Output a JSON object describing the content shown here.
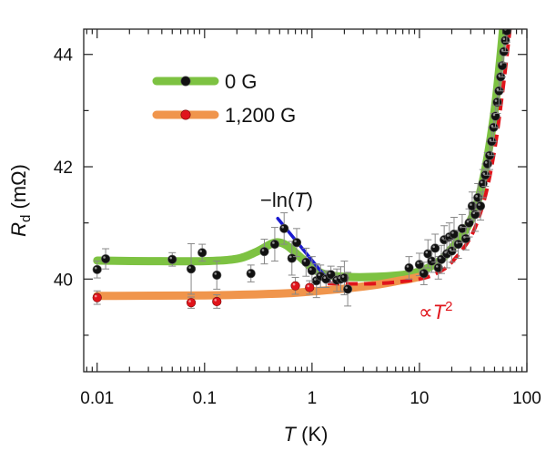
{
  "chart_data": {
    "type": "scatter",
    "xscale": "log",
    "xlim": [
      0.0075,
      100
    ],
    "ylim": [
      38.35,
      44.45
    ],
    "xlabel": "T (K)",
    "xlabel_italic": "T",
    "xlabel_rest": " (K)",
    "ylabel": "R_d (mΩ)",
    "ylabel_R": "R",
    "ylabel_sub": "d",
    "ylabel_rest": " (mΩ)",
    "xticks": [
      0.01,
      0.1,
      1,
      10,
      100
    ],
    "xtick_labels": [
      "0.01",
      "0.1",
      "1",
      "10",
      "100"
    ],
    "yticks": [
      40,
      42,
      44
    ],
    "ytick_labels": [
      "40",
      "42",
      "44"
    ],
    "legend_position": "top-left",
    "series": [
      {
        "name": "0 G",
        "marker_color": "#111111",
        "line_color": "#7dc242",
        "points": [
          [
            0.01,
            40.17,
            0.15
          ],
          [
            0.012,
            40.36,
            0.18
          ],
          [
            0.05,
            40.35,
            0.12
          ],
          [
            0.075,
            40.18,
            0.45
          ],
          [
            0.095,
            40.47,
            0.15
          ],
          [
            0.13,
            40.07,
            0.25
          ],
          [
            0.27,
            40.1,
            0.15
          ],
          [
            0.36,
            40.49,
            0.22
          ],
          [
            0.45,
            40.62,
            0.3
          ],
          [
            0.55,
            40.9,
            0.28
          ],
          [
            0.65,
            40.37,
            0.3
          ],
          [
            0.72,
            40.65,
            0.25
          ],
          [
            0.88,
            40.3,
            0.25
          ],
          [
            1.0,
            40.15,
            0.25
          ],
          [
            1.1,
            39.97,
            0.3
          ],
          [
            1.2,
            40.05,
            0.2
          ],
          [
            1.35,
            40.0,
            0.15
          ],
          [
            1.5,
            40.08,
            0.15
          ],
          [
            1.7,
            39.98,
            0.2
          ],
          [
            1.85,
            40.0,
            0.22
          ],
          [
            2.0,
            40.02,
            0.3
          ],
          [
            2.15,
            39.82,
            0.3
          ],
          [
            8.0,
            40.2,
            0.2
          ],
          [
            10.0,
            40.26,
            0.2
          ],
          [
            11.0,
            40.1,
            0.2
          ],
          [
            12.0,
            40.45,
            0.25
          ],
          [
            13.0,
            40.32,
            0.2
          ],
          [
            14.0,
            40.55,
            0.25
          ],
          [
            15.0,
            40.2,
            0.2
          ],
          [
            16.0,
            40.35,
            0.25
          ],
          [
            17.0,
            40.7,
            0.25
          ],
          [
            18.0,
            40.45,
            0.25
          ],
          [
            19.0,
            40.75,
            0.25
          ],
          [
            20.0,
            40.5,
            0.2
          ],
          [
            21.0,
            40.8,
            0.3
          ],
          [
            23.0,
            40.62,
            0.25
          ],
          [
            25.0,
            40.9,
            0.25
          ],
          [
            27.0,
            40.72,
            0.2
          ],
          [
            29.0,
            41.0,
            0.25
          ],
          [
            31.0,
            41.3,
            0.25
          ],
          [
            33.0,
            41.15,
            0.3
          ],
          [
            35.0,
            41.45,
            0.25
          ],
          [
            37.0,
            41.3,
            0.25
          ],
          [
            39.0,
            41.7,
            0.25
          ],
          [
            41.0,
            41.85,
            0.2
          ],
          [
            43.0,
            42.05,
            0.2
          ],
          [
            45.0,
            42.2,
            0.25
          ],
          [
            47.0,
            42.45,
            0.25
          ],
          [
            49.0,
            42.7,
            0.25
          ],
          [
            51.0,
            42.9,
            0.2
          ],
          [
            53.0,
            43.15,
            0.2
          ],
          [
            55.0,
            43.35,
            0.25
          ],
          [
            57.0,
            43.6,
            0.25
          ],
          [
            59.0,
            43.8,
            0.2
          ],
          [
            61.0,
            44.05,
            0.2
          ],
          [
            63.0,
            44.25,
            0.2
          ],
          [
            65.0,
            44.42,
            0.2
          ]
        ],
        "curve": [
          [
            0.01,
            40.33
          ],
          [
            0.03,
            40.32
          ],
          [
            0.1,
            40.32
          ],
          [
            0.2,
            40.36
          ],
          [
            0.3,
            40.48
          ],
          [
            0.42,
            40.63
          ],
          [
            0.5,
            40.65
          ],
          [
            0.6,
            40.58
          ],
          [
            0.8,
            40.37
          ],
          [
            1.0,
            40.2
          ],
          [
            1.3,
            40.09
          ],
          [
            2.0,
            40.04
          ],
          [
            4.0,
            40.04
          ],
          [
            8.0,
            40.09
          ],
          [
            12.0,
            40.2
          ],
          [
            16.0,
            40.35
          ],
          [
            20.0,
            40.55
          ],
          [
            25.0,
            40.78
          ],
          [
            30.0,
            41.05
          ],
          [
            35.0,
            41.4
          ],
          [
            40.0,
            41.85
          ],
          [
            45.0,
            42.4
          ],
          [
            50.0,
            43.0
          ],
          [
            55.0,
            43.7
          ],
          [
            60.0,
            44.45
          ]
        ]
      },
      {
        "name": "1,200 G",
        "marker_color": "#e0141b",
        "line_color": "#f0954c",
        "points": [
          [
            0.01,
            39.67,
            0.12
          ],
          [
            0.075,
            39.58,
            0.1
          ],
          [
            0.13,
            39.6,
            0.12
          ],
          [
            0.7,
            39.88,
            0.15
          ],
          [
            0.95,
            39.85,
            0.12
          ]
        ],
        "curve": [
          [
            0.01,
            39.7
          ],
          [
            0.1,
            39.71
          ],
          [
            0.5,
            39.74
          ],
          [
            1.0,
            39.78
          ],
          [
            2.0,
            39.83
          ],
          [
            4.0,
            39.9
          ],
          [
            6.0,
            39.96
          ],
          [
            8.0,
            40.0
          ],
          [
            10.0,
            40.04
          ]
        ]
      }
    ],
    "fits": [
      {
        "name": "-ln(T)",
        "color": "#1a1ad0",
        "segment": [
          [
            0.48,
            41.08
          ],
          [
            1.5,
            39.92
          ]
        ]
      },
      {
        "name": "∝T^2",
        "color": "#e0141b",
        "dashed": true,
        "curve": [
          [
            1.4,
            39.92
          ],
          [
            4.0,
            39.92
          ],
          [
            10.0,
            40.0
          ],
          [
            15.0,
            40.12
          ],
          [
            20.0,
            40.3
          ],
          [
            30.0,
            40.75
          ],
          [
            40.0,
            41.4
          ],
          [
            50.0,
            42.3
          ],
          [
            60.0,
            43.4
          ],
          [
            70.0,
            44.5
          ]
        ]
      }
    ],
    "annotations": {
      "lnT": {
        "prefix": "−ln(",
        "var": "T",
        "suffix": ")"
      },
      "T2": {
        "prefix": "∝",
        "var": "T",
        "sup": "2"
      }
    }
  }
}
